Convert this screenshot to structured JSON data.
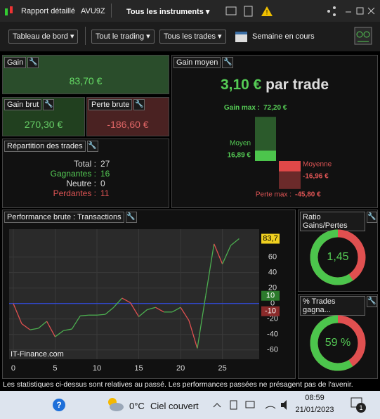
{
  "topbar": {
    "tabs": [
      "Rapport détaillé",
      "AVU9Z",
      "Tous les instruments"
    ]
  },
  "toolbar": {
    "buttons": [
      "Tableau de bord",
      "Tout le trading",
      "Tous les trades"
    ],
    "period": "Semaine en cours"
  },
  "gain": {
    "title": "Gain",
    "value": "83,70 €"
  },
  "gain_brut": {
    "title": "Gain brut",
    "value": "270,30 €"
  },
  "perte_brute": {
    "title": "Perte brute",
    "value": "-186,60 €"
  },
  "repartition": {
    "title": "Répartition des trades",
    "rows": [
      {
        "label": "Total :",
        "value": "27"
      },
      {
        "label": "Gagnantes :",
        "value": "16"
      },
      {
        "label": "Neutre :",
        "value": "0"
      },
      {
        "label": "Perdantes :",
        "value": "11"
      }
    ]
  },
  "gain_moyen": {
    "title": "Gain moyen",
    "headline": "3,10 €",
    "headline_suffix": "par trade",
    "gain_max_label": "Gain max :",
    "gain_max": {
      "value": 72.2,
      "label": "72,20 €"
    },
    "moyen_label": "Moyen",
    "moyen": {
      "value": 16.89,
      "label": "16,89 €"
    },
    "moyenne_label": "Moyenne",
    "moyenne": {
      "value": -16.96,
      "label": "-16,96 €"
    },
    "perte_max_label": "Perte max :",
    "perte_max": {
      "value": -45.8,
      "label": "-45,80 €"
    }
  },
  "chart_data": {
    "type": "line",
    "title": "Performance brute : Transactions",
    "watermark": "IT-Finance.com",
    "x": [
      0,
      1,
      2,
      3,
      4,
      5,
      6,
      7,
      8,
      9,
      10,
      11,
      12,
      13,
      14,
      15,
      16,
      17,
      18,
      19,
      20,
      21,
      22,
      23,
      24,
      25,
      26,
      27
    ],
    "series": [
      {
        "color": "#4caf50",
        "down_color": "#e05050",
        "values": [
          0,
          -26,
          -34,
          -32,
          -23,
          -43,
          -35,
          -33,
          -16,
          -15,
          -15,
          -14,
          -5,
          7,
          1,
          -17,
          -8,
          -5,
          -11,
          -11,
          -5,
          -22,
          -58,
          10,
          77,
          51,
          75,
          83.7
        ]
      }
    ],
    "xlim": [
      -0.5,
      29.4
    ],
    "ylim": [
      -72,
      96
    ],
    "xticks": [
      0,
      5,
      10,
      15,
      20,
      25
    ],
    "yticks": [
      60,
      40,
      20,
      0,
      -20,
      -40,
      -60
    ],
    "grid": true,
    "zero_line_color": "#3050ff",
    "markers": [
      {
        "value": 83.7,
        "label": "83,7",
        "color": "#f0d020"
      },
      {
        "value": 10,
        "label": "10",
        "color": "#2c7a2c"
      },
      {
        "value": -10,
        "label": "-10",
        "color": "#8a2a2a"
      }
    ]
  },
  "ratio": {
    "title": "Ratio Gains/Pertes",
    "value": 1.45,
    "label": "1,45"
  },
  "pct": {
    "title": "% Trades gagna...",
    "value": 59,
    "label": "59 %"
  },
  "footer": "Les statistiques ci-dessus sont relatives au passé. Les performances passées ne présagent pas de l'avenir.",
  "taskbar": {
    "temp": "0°C",
    "weather": "Ciel couvert",
    "time": "08:59",
    "date": "21/01/2023",
    "notif": "1"
  }
}
